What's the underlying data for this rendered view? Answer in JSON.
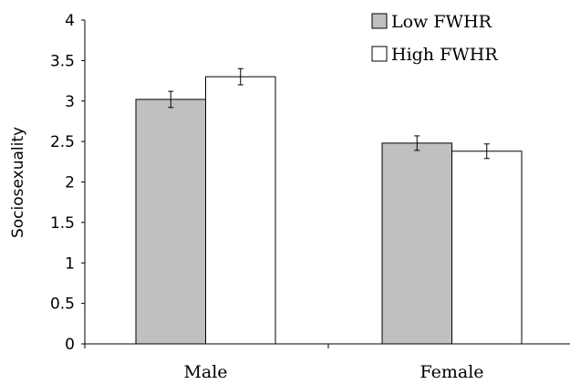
{
  "chart_data": {
    "type": "bar",
    "title": "",
    "xlabel": "",
    "ylabel": "Sociosexuality",
    "ylim": [
      0,
      4
    ],
    "yticks": [
      "0",
      "0.5",
      "1",
      "1.5",
      "2",
      "2.5",
      "3",
      "3.5",
      "4"
    ],
    "categories": [
      "Male",
      "Female"
    ],
    "legend_position": "top-right",
    "grid": false,
    "series": [
      {
        "name": "Low FWHR",
        "values": [
          3.02,
          2.48
        ],
        "error": [
          0.1,
          0.09
        ],
        "color": "#c0c0c0"
      },
      {
        "name": "High FWHR",
        "values": [
          3.3,
          2.38
        ],
        "error": [
          0.1,
          0.09
        ],
        "color": "#ffffff"
      }
    ]
  }
}
